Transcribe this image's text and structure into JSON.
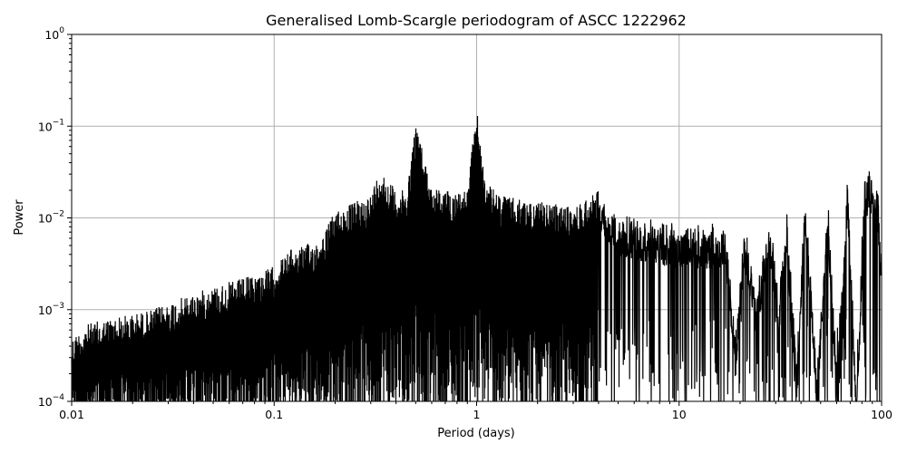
{
  "chart_data": {
    "type": "line",
    "title": "Generalised Lomb-Scargle periodogram of ASCC 1222962",
    "xlabel": "Period (days)",
    "ylabel": "Power",
    "xscale": "log",
    "yscale": "log",
    "xlim": [
      0.01,
      100
    ],
    "ylim": [
      0.0001,
      1
    ],
    "x_ticks": [
      {
        "value": 0.01,
        "label": "0.01"
      },
      {
        "value": 0.1,
        "label": "0.1"
      },
      {
        "value": 1,
        "label": "1"
      },
      {
        "value": 10,
        "label": "10"
      },
      {
        "value": 100,
        "label": "100"
      }
    ],
    "y_ticks": [
      {
        "value": 0.0001,
        "base": "10",
        "exp": "−4"
      },
      {
        "value": 0.001,
        "base": "10",
        "exp": "−3"
      },
      {
        "value": 0.01,
        "base": "10",
        "exp": "−2"
      },
      {
        "value": 0.1,
        "base": "10",
        "exp": "−1"
      },
      {
        "value": 1,
        "base": "10",
        "exp": "0"
      }
    ],
    "grid": true,
    "line_color": "#000000",
    "grid_color": "#b0b0b0",
    "series": [
      {
        "x": [
          0.01,
          0.012,
          0.015,
          0.02,
          0.025,
          0.03,
          0.04,
          0.05,
          0.06,
          0.07,
          0.08,
          0.1,
          0.12,
          0.14,
          0.17,
          0.2,
          0.25,
          0.3,
          0.333,
          0.4,
          0.45,
          0.5,
          0.6,
          0.7,
          0.8,
          0.9,
          1.0,
          1.1,
          1.3,
          1.6,
          2.0,
          2.5,
          3.0,
          4.0,
          5.0,
          6.0,
          7.5,
          9.0,
          11,
          13,
          15,
          17,
          19,
          21,
          24,
          28,
          31,
          34,
          38,
          42,
          48,
          54,
          60,
          68,
          75,
          82,
          90,
          96,
          100
        ],
        "y": [
          0.0005,
          0.0007,
          0.0008,
          0.0009,
          0.001,
          0.0012,
          0.0015,
          0.0018,
          0.002,
          0.0022,
          0.0024,
          0.003,
          0.0045,
          0.005,
          0.006,
          0.012,
          0.015,
          0.018,
          0.035,
          0.02,
          0.02,
          0.11,
          0.022,
          0.02,
          0.02,
          0.02,
          0.16,
          0.025,
          0.018,
          0.016,
          0.015,
          0.014,
          0.013,
          0.021,
          0.012,
          0.011,
          0.01,
          0.009,
          0.009,
          0.0085,
          0.009,
          0.009,
          0.0005,
          0.0095,
          0.0015,
          0.0125,
          0.0015,
          0.0125,
          0.0003,
          0.021,
          0.0002,
          0.021,
          0.0003,
          0.03,
          0.00012,
          0.03,
          0.036,
          0.02,
          0.004
        ]
      }
    ]
  }
}
